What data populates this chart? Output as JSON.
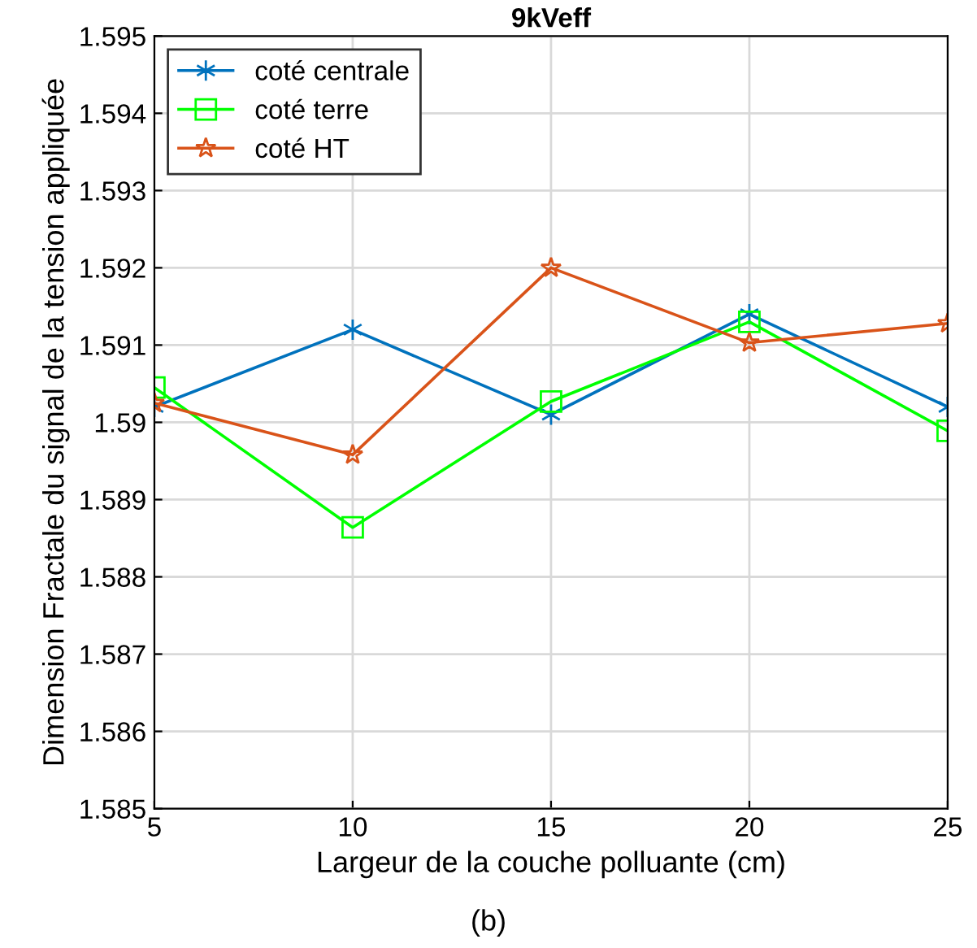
{
  "chart_data": {
    "type": "line",
    "title": "9kVeff",
    "xlabel": "Largeur de la couche polluante (cm)",
    "ylabel": "Dimension Fractale du signal de la tension appliquée",
    "x": [
      5,
      10,
      15,
      20,
      25
    ],
    "series": [
      {
        "name": "coté centrale",
        "color": "#0072bd",
        "marker": "cross",
        "values": [
          1.5902,
          1.5912,
          1.5901,
          1.5914,
          1.5902
        ]
      },
      {
        "name": "coté terre",
        "color": "#00ff00",
        "marker": "square",
        "values": [
          1.59045,
          1.58864,
          1.59027,
          1.5913,
          1.58989
        ]
      },
      {
        "name": "coté HT",
        "color": "#d95319",
        "marker": "star",
        "values": [
          1.59025,
          1.58958,
          1.592,
          1.59103,
          1.59128
        ]
      }
    ],
    "xlim": [
      5,
      25
    ],
    "xticks": [
      5,
      10,
      15,
      20,
      25
    ],
    "ylim": [
      1.585,
      1.595
    ],
    "yticks": [
      {
        "value": 1.585,
        "label": "1.585"
      },
      {
        "value": 1.586,
        "label": "1.586"
      },
      {
        "value": 1.587,
        "label": "1.587"
      },
      {
        "value": 1.588,
        "label": "1.588"
      },
      {
        "value": 1.589,
        "label": "1.589"
      },
      {
        "value": 1.59,
        "label": "1.59"
      },
      {
        "value": 1.591,
        "label": "1.591"
      },
      {
        "value": 1.592,
        "label": "1.592"
      },
      {
        "value": 1.593,
        "label": "1.593"
      },
      {
        "value": 1.594,
        "label": "1.594"
      },
      {
        "value": 1.595,
        "label": "1.595"
      }
    ],
    "grid": true,
    "legend": "top left",
    "line_style": "solid",
    "annotations": [
      "(b)"
    ]
  }
}
